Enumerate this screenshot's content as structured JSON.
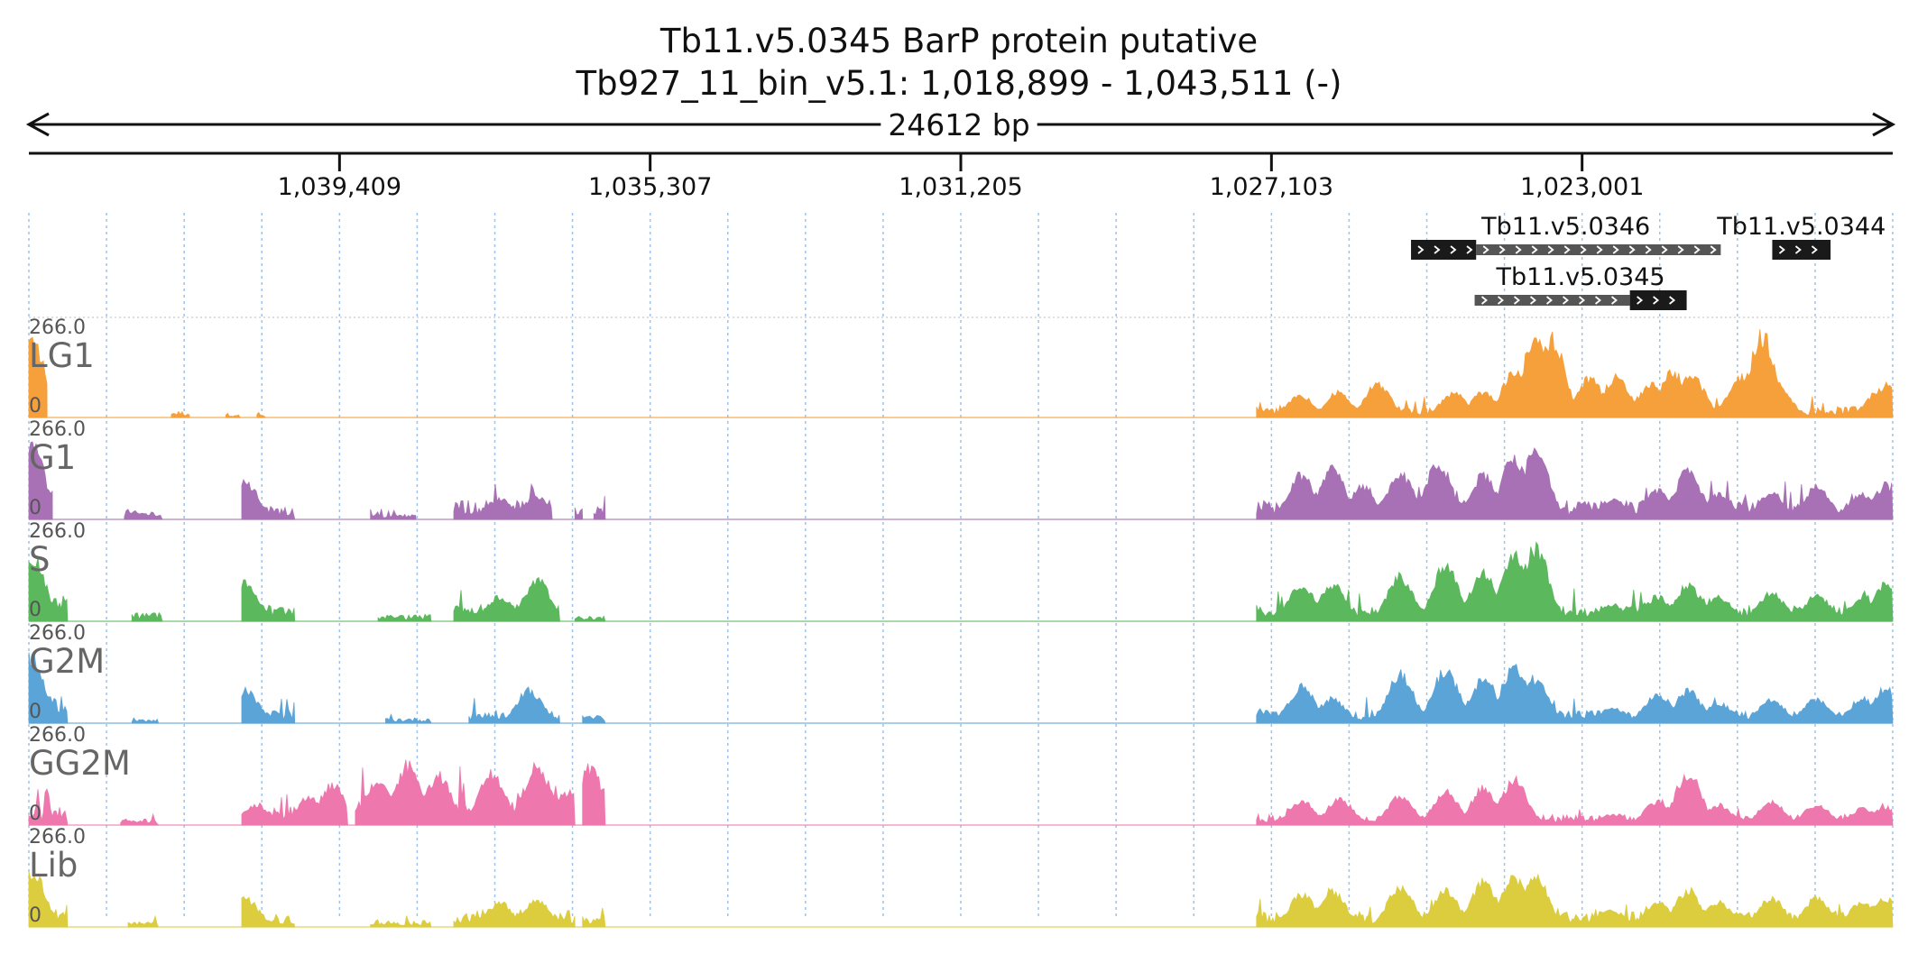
{
  "header": {
    "title": "Tb11.v5.0345  BarP protein  putative",
    "locus": "Tb927_11_bin_v5.1: 1,018,899 - 1,043,511 (-)",
    "span_label": "24612 bp"
  },
  "chart_data": {
    "type": "area",
    "region": {
      "chromosome": "Tb927_11_bin_v5.1",
      "start": 1018899,
      "end": 1043511,
      "strand": "-",
      "length_bp": 24612
    },
    "x_axis": {
      "direction": "reversed",
      "ticks": [
        1039409,
        1035307,
        1031205,
        1027103,
        1023001
      ],
      "tick_labels": [
        "1,039,409",
        "1,035,307",
        "1,031,205",
        "1,027,103",
        "1,023,001"
      ]
    },
    "grid": true,
    "genes": [
      {
        "name": "Tb11.v5.0346",
        "utr": [
          1021170,
          1024400
        ],
        "cds": [
          1024400,
          1025260
        ],
        "strand": "-",
        "row": 0
      },
      {
        "name": "Tb11.v5.0344",
        "utr": [],
        "cds": [
          1019720,
          1020490
        ],
        "strand": "-",
        "row": 0
      },
      {
        "name": "Tb11.v5.0345",
        "utr": [
          1022370,
          1024420
        ],
        "cds": [
          1021620,
          1022370
        ],
        "strand": "-",
        "row": 1
      }
    ],
    "tracks": [
      {
        "name": "LG1",
        "color": "#f5a03a",
        "ymax": 266.0,
        "ymin": 0,
        "regions": [
          {
            "from": 1043511,
            "to": 1043270,
            "level": 0.3,
            "peaks": [
              [
                1043470,
                0.95
              ]
            ]
          },
          {
            "from": 1041630,
            "to": 1041390,
            "level": 0.06,
            "peaks": []
          },
          {
            "from": 1040910,
            "to": 1040720,
            "level": 0.04,
            "peaks": []
          },
          {
            "from": 1040500,
            "to": 1040390,
            "level": 0.03,
            "peaks": []
          },
          {
            "from": 1027300,
            "to": 1018899,
            "level": 0.1,
            "peaks": [
              [
                1026720,
                0.28
              ],
              [
                1026220,
                0.3
              ],
              [
                1025700,
                0.42
              ],
              [
                1024700,
                0.3
              ],
              [
                1024300,
                0.32
              ],
              [
                1023900,
                0.55
              ],
              [
                1023610,
                1.0
              ],
              [
                1023400,
                0.95
              ],
              [
                1022900,
                0.48
              ],
              [
                1022550,
                0.5
              ],
              [
                1022100,
                0.4
              ],
              [
                1021800,
                0.55
              ],
              [
                1021550,
                0.52
              ],
              [
                1020900,
                0.5
              ],
              [
                1020620,
                1.0
              ],
              [
                1020400,
                0.35
              ],
              [
                1019100,
                0.3
              ],
              [
                1018990,
                0.4
              ]
            ]
          }
        ]
      },
      {
        "name": "G1",
        "color": "#a871b6",
        "ymax": 266.0,
        "ymin": 0,
        "regions": [
          {
            "from": 1043511,
            "to": 1043200,
            "level": 0.3,
            "peaks": [
              [
                1043470,
                0.9
              ]
            ]
          },
          {
            "from": 1042250,
            "to": 1041750,
            "level": 0.08,
            "peaks": []
          },
          {
            "from": 1040700,
            "to": 1040000,
            "level": 0.12,
            "peaks": [
              [
                1040650,
                0.45
              ]
            ]
          },
          {
            "from": 1039000,
            "to": 1038400,
            "level": 0.05,
            "peaks": []
          },
          {
            "from": 1037900,
            "to": 1036600,
            "level": 0.18,
            "peaks": [
              [
                1037300,
                0.25
              ],
              [
                1036800,
                0.28
              ]
            ]
          },
          {
            "from": 1036300,
            "to": 1036200,
            "level": 0.1,
            "peaks": []
          },
          {
            "from": 1036050,
            "to": 1035900,
            "level": 0.12,
            "peaks": []
          },
          {
            "from": 1027300,
            "to": 1018899,
            "level": 0.18,
            "peaks": [
              [
                1026700,
                0.55
              ],
              [
                1026300,
                0.62
              ],
              [
                1025900,
                0.4
              ],
              [
                1025400,
                0.55
              ],
              [
                1024900,
                0.7
              ],
              [
                1024300,
                0.55
              ],
              [
                1023900,
                0.75
              ],
              [
                1023610,
                0.85
              ],
              [
                1022600,
                0.25
              ],
              [
                1022000,
                0.35
              ],
              [
                1021600,
                0.6
              ],
              [
                1021200,
                0.3
              ],
              [
                1020500,
                0.32
              ],
              [
                1019900,
                0.4
              ],
              [
                1019300,
                0.3
              ],
              [
                1019000,
                0.38
              ]
            ]
          }
        ]
      },
      {
        "name": "S",
        "color": "#5bb85d",
        "ymax": 266.0,
        "ymin": 0,
        "regions": [
          {
            "from": 1043511,
            "to": 1043000,
            "level": 0.25,
            "peaks": [
              [
                1043470,
                0.8
              ]
            ]
          },
          {
            "from": 1042150,
            "to": 1041750,
            "level": 0.08,
            "peaks": []
          },
          {
            "from": 1040700,
            "to": 1040000,
            "level": 0.14,
            "peaks": [
              [
                1040650,
                0.48
              ]
            ]
          },
          {
            "from": 1038900,
            "to": 1038200,
            "level": 0.06,
            "peaks": []
          },
          {
            "from": 1037900,
            "to": 1036500,
            "level": 0.16,
            "peaks": [
              [
                1037300,
                0.3
              ],
              [
                1036800,
                0.5
              ]
            ]
          },
          {
            "from": 1036300,
            "to": 1035900,
            "level": 0.05,
            "peaks": []
          },
          {
            "from": 1027300,
            "to": 1018899,
            "level": 0.15,
            "peaks": [
              [
                1026700,
                0.45
              ],
              [
                1026300,
                0.45
              ],
              [
                1025400,
                0.55
              ],
              [
                1024800,
                0.7
              ],
              [
                1024300,
                0.6
              ],
              [
                1023900,
                0.8
              ],
              [
                1023610,
                0.9
              ],
              [
                1022600,
                0.2
              ],
              [
                1022000,
                0.3
              ],
              [
                1021600,
                0.45
              ],
              [
                1021200,
                0.3
              ],
              [
                1020500,
                0.35
              ],
              [
                1019900,
                0.32
              ],
              [
                1019300,
                0.28
              ],
              [
                1019000,
                0.45
              ]
            ]
          }
        ]
      },
      {
        "name": "G2M",
        "color": "#5aa4d8",
        "ymax": 266.0,
        "ymin": 0,
        "regions": [
          {
            "from": 1043511,
            "to": 1043000,
            "level": 0.25,
            "peaks": [
              [
                1043470,
                0.8
              ]
            ]
          },
          {
            "from": 1042150,
            "to": 1041800,
            "level": 0.05,
            "peaks": []
          },
          {
            "from": 1040700,
            "to": 1040000,
            "level": 0.12,
            "peaks": [
              [
                1040650,
                0.4
              ]
            ]
          },
          {
            "from": 1038800,
            "to": 1038200,
            "level": 0.05,
            "peaks": []
          },
          {
            "from": 1037700,
            "to": 1036500,
            "level": 0.12,
            "peaks": [
              [
                1036900,
                0.4
              ]
            ]
          },
          {
            "from": 1036200,
            "to": 1035900,
            "level": 0.08,
            "peaks": []
          },
          {
            "from": 1027300,
            "to": 1018899,
            "level": 0.12,
            "peaks": [
              [
                1026700,
                0.45
              ],
              [
                1026300,
                0.3
              ],
              [
                1025400,
                0.6
              ],
              [
                1024800,
                0.65
              ],
              [
                1024300,
                0.55
              ],
              [
                1023900,
                0.7
              ],
              [
                1023610,
                0.55
              ],
              [
                1022600,
                0.18
              ],
              [
                1022000,
                0.35
              ],
              [
                1021600,
                0.4
              ],
              [
                1021200,
                0.25
              ],
              [
                1020500,
                0.3
              ],
              [
                1019900,
                0.3
              ],
              [
                1019300,
                0.3
              ],
              [
                1019000,
                0.42
              ]
            ]
          }
        ]
      },
      {
        "name": "GG2M",
        "color": "#ee78ae",
        "ymax": 266.0,
        "ymin": 0,
        "regions": [
          {
            "from": 1043511,
            "to": 1043000,
            "level": 0.18,
            "peaks": []
          },
          {
            "from": 1042300,
            "to": 1041800,
            "level": 0.06,
            "peaks": []
          },
          {
            "from": 1040700,
            "to": 1039300,
            "level": 0.18,
            "peaks": [
              [
                1040500,
                0.25
              ],
              [
                1039800,
                0.35
              ],
              [
                1039500,
                0.5
              ]
            ]
          },
          {
            "from": 1039200,
            "to": 1036300,
            "level": 0.3,
            "peaks": [
              [
                1038900,
                0.55
              ],
              [
                1038500,
                0.75
              ],
              [
                1038100,
                0.6
              ],
              [
                1037400,
                0.65
              ],
              [
                1036800,
                0.75
              ],
              [
                1036400,
                0.4
              ]
            ]
          },
          {
            "from": 1036200,
            "to": 1035900,
            "level": 0.4,
            "peaks": [
              [
                1036100,
                0.7
              ]
            ]
          },
          {
            "from": 1027300,
            "to": 1018899,
            "level": 0.1,
            "peaks": [
              [
                1026700,
                0.3
              ],
              [
                1026200,
                0.32
              ],
              [
                1025400,
                0.35
              ],
              [
                1024800,
                0.4
              ],
              [
                1024300,
                0.45
              ],
              [
                1023900,
                0.55
              ],
              [
                1022600,
                0.12
              ],
              [
                1022000,
                0.3
              ],
              [
                1021600,
                0.65
              ],
              [
                1021200,
                0.25
              ],
              [
                1020500,
                0.28
              ],
              [
                1019900,
                0.25
              ],
              [
                1019300,
                0.2
              ],
              [
                1019000,
                0.22
              ]
            ]
          }
        ]
      },
      {
        "name": "Lib",
        "color": "#dccd3f",
        "ymax": 266.0,
        "ymin": 0,
        "regions": [
          {
            "from": 1043511,
            "to": 1043000,
            "level": 0.22,
            "peaks": [
              [
                1043470,
                0.7
              ]
            ]
          },
          {
            "from": 1042200,
            "to": 1041800,
            "level": 0.05,
            "peaks": []
          },
          {
            "from": 1040700,
            "to": 1040000,
            "level": 0.12,
            "peaks": [
              [
                1040650,
                0.35
              ]
            ]
          },
          {
            "from": 1039000,
            "to": 1038200,
            "level": 0.06,
            "peaks": []
          },
          {
            "from": 1037900,
            "to": 1036300,
            "level": 0.16,
            "peaks": [
              [
                1037300,
                0.3
              ],
              [
                1036800,
                0.32
              ]
            ]
          },
          {
            "from": 1036200,
            "to": 1035900,
            "level": 0.12,
            "peaks": []
          },
          {
            "from": 1027300,
            "to": 1018899,
            "level": 0.14,
            "peaks": [
              [
                1026700,
                0.4
              ],
              [
                1026300,
                0.45
              ],
              [
                1025400,
                0.5
              ],
              [
                1024800,
                0.45
              ],
              [
                1024300,
                0.55
              ],
              [
                1023900,
                0.6
              ],
              [
                1023610,
                0.6
              ],
              [
                1022600,
                0.2
              ],
              [
                1022000,
                0.3
              ],
              [
                1021600,
                0.45
              ],
              [
                1021200,
                0.3
              ],
              [
                1020500,
                0.35
              ],
              [
                1019900,
                0.35
              ],
              [
                1019300,
                0.3
              ],
              [
                1019000,
                0.35
              ]
            ]
          }
        ]
      }
    ],
    "scale_labels": {
      "max": "266.0",
      "min": "0"
    }
  }
}
